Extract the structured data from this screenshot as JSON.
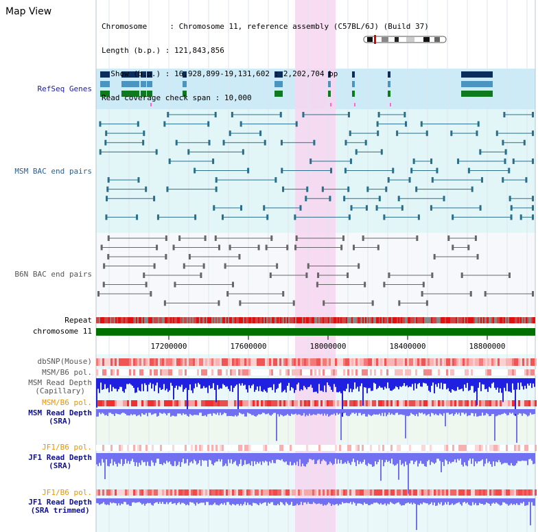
{
  "title": "Map View",
  "info": {
    "chromosome_label": "Chromosome    ",
    "chromosome_value": "Chromosome 11, reference assembly (C57BL/6J) (Build 37)",
    "length_label": "Length (b.p.)",
    "length_value": "121,843,856",
    "show_label": "  Show (b.p.)",
    "show_value": "16,928,899-19,131,602 : 2,202,704 bp",
    "coverage_label": "Read coverage check span",
    "coverage_value": "10,000"
  },
  "tracks": {
    "refseq": "RefSeq Genes",
    "msm_bac": "MSM BAC end pairs",
    "b6n_bac": "B6N BAC end pairs",
    "repeat": "Repeat",
    "chromosome": "chromosome 11",
    "dbsnp": "dbSNP(Mouse)",
    "msm_b6_pol_1": "MSM/B6 pol.",
    "msm_depth_cap_1": "MSM Read Depth",
    "msm_depth_cap_2": "(Capillary)",
    "msm_b6_pol_2": "MSM/B6 pol.",
    "msm_depth_sra_1": "MSM Read Depth",
    "msm_depth_sra_2": "(SRA)",
    "jf1_b6_pol_1": "JF1/B6 pol.",
    "jf1_depth_sra_1": "JF1 Read Depth",
    "jf1_depth_sra_2": "(SRA)",
    "jf1_b6_pol_2": "JF1/B6 pol.",
    "jf1_depth_trim_1": "JF1 Read Depth",
    "jf1_depth_trim_2": "(SRA trimmed)"
  },
  "axis_ticks": [
    "17200000",
    "17600000",
    "18000000",
    "18400000",
    "18800000"
  ],
  "colors": {
    "refseq_bg": "#cdeaf7",
    "msm_bg": "#e2f6f8",
    "highlight": "#f7d6f0",
    "chromosome_bar": "#007000",
    "depth_blue": "#2020e0",
    "depth_light": "#7070f0",
    "pol_red": "#f03030"
  }
}
